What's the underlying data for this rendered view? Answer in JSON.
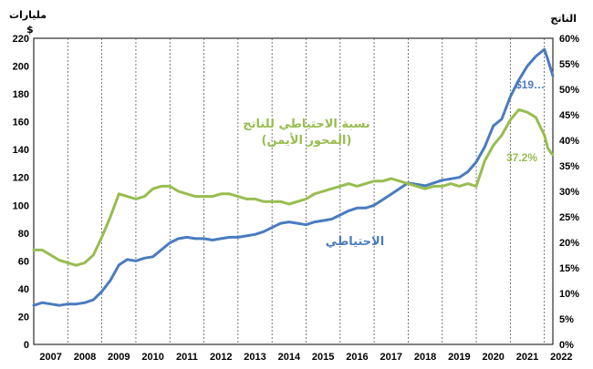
{
  "chart_data": {
    "type": "line",
    "left_axis_unit": "مليارات",
    "left_axis_currency": "$",
    "right_axis_unit": "الناتج",
    "ylim_left": [
      0,
      220
    ],
    "ylim_right": [
      0,
      60
    ],
    "y_ticks_left": [
      "0",
      "20",
      "40",
      "60",
      "80",
      "100",
      "120",
      "140",
      "160",
      "180",
      "200",
      "220"
    ],
    "y_ticks_right": [
      "0%",
      "5%",
      "10%",
      "15%",
      "20%",
      "25%",
      "30%",
      "35%",
      "40%",
      "45%",
      "50%",
      "55%",
      "60%"
    ],
    "x_ticks": [
      "2007",
      "2008",
      "2009",
      "2010",
      "2011",
      "2012",
      "2013",
      "2014",
      "2015",
      "2016",
      "2017",
      "2018",
      "2019",
      "2020",
      "2021",
      "2022"
    ],
    "xlim": [
      2007.0,
      2022.25
    ],
    "grid": "vertical dashed per year",
    "series": [
      {
        "name": "الاحتياطي",
        "axis": "left",
        "color": "#4a7bbf",
        "end_label": "$19…",
        "points": [
          [
            2007.0,
            28
          ],
          [
            2007.25,
            30
          ],
          [
            2007.5,
            29
          ],
          [
            2007.75,
            28
          ],
          [
            2008.0,
            29
          ],
          [
            2008.25,
            29
          ],
          [
            2008.5,
            30
          ],
          [
            2008.75,
            32
          ],
          [
            2009.0,
            38
          ],
          [
            2009.25,
            46
          ],
          [
            2009.5,
            57
          ],
          [
            2009.75,
            61
          ],
          [
            2010.0,
            60
          ],
          [
            2010.25,
            62
          ],
          [
            2010.5,
            63
          ],
          [
            2010.75,
            68
          ],
          [
            2011.0,
            73
          ],
          [
            2011.25,
            76
          ],
          [
            2011.5,
            77
          ],
          [
            2011.75,
            76
          ],
          [
            2012.0,
            76
          ],
          [
            2012.25,
            75
          ],
          [
            2012.5,
            76
          ],
          [
            2012.75,
            77
          ],
          [
            2013.0,
            77
          ],
          [
            2013.25,
            78
          ],
          [
            2013.5,
            79
          ],
          [
            2013.75,
            81
          ],
          [
            2014.0,
            84
          ],
          [
            2014.25,
            87
          ],
          [
            2014.5,
            88
          ],
          [
            2014.75,
            87
          ],
          [
            2015.0,
            86
          ],
          [
            2015.25,
            88
          ],
          [
            2015.5,
            89
          ],
          [
            2015.75,
            90
          ],
          [
            2016.0,
            93
          ],
          [
            2016.25,
            96
          ],
          [
            2016.5,
            98
          ],
          [
            2016.75,
            98
          ],
          [
            2017.0,
            100
          ],
          [
            2017.25,
            104
          ],
          [
            2017.5,
            108
          ],
          [
            2017.75,
            112
          ],
          [
            2018.0,
            116
          ],
          [
            2018.25,
            115
          ],
          [
            2018.5,
            114
          ],
          [
            2018.75,
            116
          ],
          [
            2019.0,
            118
          ],
          [
            2019.25,
            119
          ],
          [
            2019.5,
            120
          ],
          [
            2019.75,
            124
          ],
          [
            2020.0,
            131
          ],
          [
            2020.25,
            142
          ],
          [
            2020.5,
            157
          ],
          [
            2020.75,
            162
          ],
          [
            2021.0,
            178
          ],
          [
            2021.25,
            190
          ],
          [
            2021.5,
            200
          ],
          [
            2021.75,
            207
          ],
          [
            2022.0,
            212
          ],
          [
            2022.1,
            205
          ],
          [
            2022.2,
            197
          ],
          [
            2022.25,
            193
          ]
        ]
      },
      {
        "name": "نسبة الاحتياطي للناتج",
        "name_sub": "(المحور الأيمن)",
        "axis": "right",
        "color": "#97bd4f",
        "end_label": "37.2%",
        "points": [
          [
            2007.0,
            18.5
          ],
          [
            2007.25,
            18.5
          ],
          [
            2007.5,
            17.5
          ],
          [
            2007.75,
            16.5
          ],
          [
            2008.0,
            16.0
          ],
          [
            2008.25,
            15.5
          ],
          [
            2008.5,
            16.0
          ],
          [
            2008.75,
            17.5
          ],
          [
            2009.0,
            21.0
          ],
          [
            2009.25,
            25.0
          ],
          [
            2009.5,
            29.5
          ],
          [
            2009.75,
            29.0
          ],
          [
            2010.0,
            28.5
          ],
          [
            2010.25,
            29.0
          ],
          [
            2010.5,
            30.5
          ],
          [
            2010.75,
            31.0
          ],
          [
            2011.0,
            31.0
          ],
          [
            2011.25,
            30.0
          ],
          [
            2011.5,
            29.5
          ],
          [
            2011.75,
            29.0
          ],
          [
            2012.0,
            29.0
          ],
          [
            2012.25,
            29.0
          ],
          [
            2012.5,
            29.5
          ],
          [
            2012.75,
            29.5
          ],
          [
            2013.0,
            29.0
          ],
          [
            2013.25,
            28.5
          ],
          [
            2013.5,
            28.5
          ],
          [
            2013.75,
            28.0
          ],
          [
            2014.0,
            28.0
          ],
          [
            2014.25,
            28.0
          ],
          [
            2014.5,
            27.5
          ],
          [
            2014.75,
            28.0
          ],
          [
            2015.0,
            28.5
          ],
          [
            2015.25,
            29.5
          ],
          [
            2015.5,
            30.0
          ],
          [
            2015.75,
            30.5
          ],
          [
            2016.0,
            31.0
          ],
          [
            2016.25,
            31.5
          ],
          [
            2016.5,
            31.0
          ],
          [
            2016.75,
            31.5
          ],
          [
            2017.0,
            32.0
          ],
          [
            2017.25,
            32.0
          ],
          [
            2017.5,
            32.5
          ],
          [
            2017.75,
            32.0
          ],
          [
            2018.0,
            31.5
          ],
          [
            2018.25,
            31.0
          ],
          [
            2018.5,
            30.5
          ],
          [
            2018.75,
            31.0
          ],
          [
            2019.0,
            31.0
          ],
          [
            2019.25,
            31.5
          ],
          [
            2019.5,
            31.0
          ],
          [
            2019.75,
            31.5
          ],
          [
            2020.0,
            31.0
          ],
          [
            2020.25,
            36.0
          ],
          [
            2020.5,
            39.0
          ],
          [
            2020.75,
            41.0
          ],
          [
            2021.0,
            44.0
          ],
          [
            2021.25,
            46.0
          ],
          [
            2021.5,
            45.5
          ],
          [
            2021.75,
            44.5
          ],
          [
            2022.0,
            41.0
          ],
          [
            2022.1,
            38.5
          ],
          [
            2022.2,
            37.5
          ],
          [
            2022.25,
            37.2
          ]
        ]
      }
    ]
  }
}
